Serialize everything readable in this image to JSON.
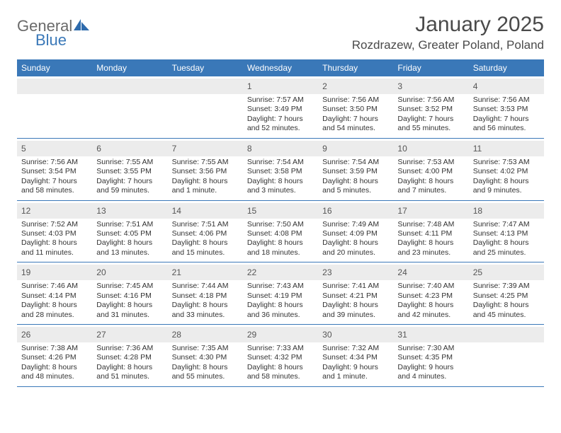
{
  "logo": {
    "word1": "General",
    "word2": "Blue"
  },
  "title": "January 2025",
  "subtitle": "Rozdrazew, Greater Poland, Poland",
  "weekdays": [
    "Sunday",
    "Monday",
    "Tuesday",
    "Wednesday",
    "Thursday",
    "Friday",
    "Saturday"
  ],
  "colors": {
    "header_bg": "#3a78b8",
    "daynum_bg": "#ececec",
    "rule": "#3a78b8",
    "text": "#333333",
    "title_text": "#4a4a4a",
    "logo_gray": "#6a6a6a",
    "logo_blue": "#3a78b8"
  },
  "weeks": [
    [
      {
        "n": "",
        "sr": "",
        "ss": "",
        "d1": "",
        "d2": ""
      },
      {
        "n": "",
        "sr": "",
        "ss": "",
        "d1": "",
        "d2": ""
      },
      {
        "n": "",
        "sr": "",
        "ss": "",
        "d1": "",
        "d2": ""
      },
      {
        "n": "1",
        "sr": "Sunrise: 7:57 AM",
        "ss": "Sunset: 3:49 PM",
        "d1": "Daylight: 7 hours",
        "d2": "and 52 minutes."
      },
      {
        "n": "2",
        "sr": "Sunrise: 7:56 AM",
        "ss": "Sunset: 3:50 PM",
        "d1": "Daylight: 7 hours",
        "d2": "and 54 minutes."
      },
      {
        "n": "3",
        "sr": "Sunrise: 7:56 AM",
        "ss": "Sunset: 3:52 PM",
        "d1": "Daylight: 7 hours",
        "d2": "and 55 minutes."
      },
      {
        "n": "4",
        "sr": "Sunrise: 7:56 AM",
        "ss": "Sunset: 3:53 PM",
        "d1": "Daylight: 7 hours",
        "d2": "and 56 minutes."
      }
    ],
    [
      {
        "n": "5",
        "sr": "Sunrise: 7:56 AM",
        "ss": "Sunset: 3:54 PM",
        "d1": "Daylight: 7 hours",
        "d2": "and 58 minutes."
      },
      {
        "n": "6",
        "sr": "Sunrise: 7:55 AM",
        "ss": "Sunset: 3:55 PM",
        "d1": "Daylight: 7 hours",
        "d2": "and 59 minutes."
      },
      {
        "n": "7",
        "sr": "Sunrise: 7:55 AM",
        "ss": "Sunset: 3:56 PM",
        "d1": "Daylight: 8 hours",
        "d2": "and 1 minute."
      },
      {
        "n": "8",
        "sr": "Sunrise: 7:54 AM",
        "ss": "Sunset: 3:58 PM",
        "d1": "Daylight: 8 hours",
        "d2": "and 3 minutes."
      },
      {
        "n": "9",
        "sr": "Sunrise: 7:54 AM",
        "ss": "Sunset: 3:59 PM",
        "d1": "Daylight: 8 hours",
        "d2": "and 5 minutes."
      },
      {
        "n": "10",
        "sr": "Sunrise: 7:53 AM",
        "ss": "Sunset: 4:00 PM",
        "d1": "Daylight: 8 hours",
        "d2": "and 7 minutes."
      },
      {
        "n": "11",
        "sr": "Sunrise: 7:53 AM",
        "ss": "Sunset: 4:02 PM",
        "d1": "Daylight: 8 hours",
        "d2": "and 9 minutes."
      }
    ],
    [
      {
        "n": "12",
        "sr": "Sunrise: 7:52 AM",
        "ss": "Sunset: 4:03 PM",
        "d1": "Daylight: 8 hours",
        "d2": "and 11 minutes."
      },
      {
        "n": "13",
        "sr": "Sunrise: 7:51 AM",
        "ss": "Sunset: 4:05 PM",
        "d1": "Daylight: 8 hours",
        "d2": "and 13 minutes."
      },
      {
        "n": "14",
        "sr": "Sunrise: 7:51 AM",
        "ss": "Sunset: 4:06 PM",
        "d1": "Daylight: 8 hours",
        "d2": "and 15 minutes."
      },
      {
        "n": "15",
        "sr": "Sunrise: 7:50 AM",
        "ss": "Sunset: 4:08 PM",
        "d1": "Daylight: 8 hours",
        "d2": "and 18 minutes."
      },
      {
        "n": "16",
        "sr": "Sunrise: 7:49 AM",
        "ss": "Sunset: 4:09 PM",
        "d1": "Daylight: 8 hours",
        "d2": "and 20 minutes."
      },
      {
        "n": "17",
        "sr": "Sunrise: 7:48 AM",
        "ss": "Sunset: 4:11 PM",
        "d1": "Daylight: 8 hours",
        "d2": "and 23 minutes."
      },
      {
        "n": "18",
        "sr": "Sunrise: 7:47 AM",
        "ss": "Sunset: 4:13 PM",
        "d1": "Daylight: 8 hours",
        "d2": "and 25 minutes."
      }
    ],
    [
      {
        "n": "19",
        "sr": "Sunrise: 7:46 AM",
        "ss": "Sunset: 4:14 PM",
        "d1": "Daylight: 8 hours",
        "d2": "and 28 minutes."
      },
      {
        "n": "20",
        "sr": "Sunrise: 7:45 AM",
        "ss": "Sunset: 4:16 PM",
        "d1": "Daylight: 8 hours",
        "d2": "and 31 minutes."
      },
      {
        "n": "21",
        "sr": "Sunrise: 7:44 AM",
        "ss": "Sunset: 4:18 PM",
        "d1": "Daylight: 8 hours",
        "d2": "and 33 minutes."
      },
      {
        "n": "22",
        "sr": "Sunrise: 7:43 AM",
        "ss": "Sunset: 4:19 PM",
        "d1": "Daylight: 8 hours",
        "d2": "and 36 minutes."
      },
      {
        "n": "23",
        "sr": "Sunrise: 7:41 AM",
        "ss": "Sunset: 4:21 PM",
        "d1": "Daylight: 8 hours",
        "d2": "and 39 minutes."
      },
      {
        "n": "24",
        "sr": "Sunrise: 7:40 AM",
        "ss": "Sunset: 4:23 PM",
        "d1": "Daylight: 8 hours",
        "d2": "and 42 minutes."
      },
      {
        "n": "25",
        "sr": "Sunrise: 7:39 AM",
        "ss": "Sunset: 4:25 PM",
        "d1": "Daylight: 8 hours",
        "d2": "and 45 minutes."
      }
    ],
    [
      {
        "n": "26",
        "sr": "Sunrise: 7:38 AM",
        "ss": "Sunset: 4:26 PM",
        "d1": "Daylight: 8 hours",
        "d2": "and 48 minutes."
      },
      {
        "n": "27",
        "sr": "Sunrise: 7:36 AM",
        "ss": "Sunset: 4:28 PM",
        "d1": "Daylight: 8 hours",
        "d2": "and 51 minutes."
      },
      {
        "n": "28",
        "sr": "Sunrise: 7:35 AM",
        "ss": "Sunset: 4:30 PM",
        "d1": "Daylight: 8 hours",
        "d2": "and 55 minutes."
      },
      {
        "n": "29",
        "sr": "Sunrise: 7:33 AM",
        "ss": "Sunset: 4:32 PM",
        "d1": "Daylight: 8 hours",
        "d2": "and 58 minutes."
      },
      {
        "n": "30",
        "sr": "Sunrise: 7:32 AM",
        "ss": "Sunset: 4:34 PM",
        "d1": "Daylight: 9 hours",
        "d2": "and 1 minute."
      },
      {
        "n": "31",
        "sr": "Sunrise: 7:30 AM",
        "ss": "Sunset: 4:35 PM",
        "d1": "Daylight: 9 hours",
        "d2": "and 4 minutes."
      },
      {
        "n": "",
        "sr": "",
        "ss": "",
        "d1": "",
        "d2": ""
      }
    ]
  ]
}
